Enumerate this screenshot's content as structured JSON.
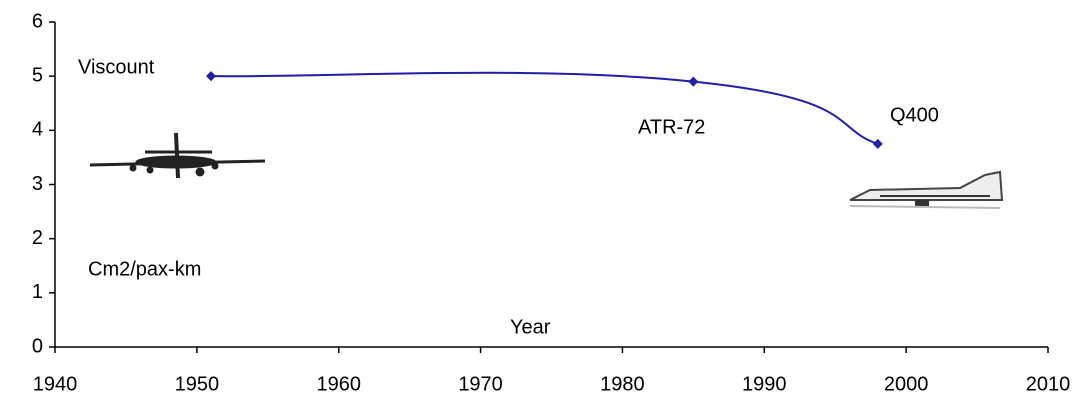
{
  "chart_data": {
    "type": "line",
    "x": [
      1951,
      1985,
      1998
    ],
    "series": [
      {
        "color": "#1f1fa8",
        "values": [
          5.0,
          4.9,
          3.75
        ]
      }
    ],
    "xlim": [
      1940,
      2010
    ],
    "xticks": [
      1940,
      1950,
      1960,
      1970,
      1980,
      1990,
      2000,
      2010
    ],
    "ylim": [
      0,
      6
    ],
    "yticks": [
      0,
      1,
      2,
      3,
      4,
      5,
      6
    ],
    "x_label": "Year",
    "y_label": "Cm2/pax-km",
    "annotations": [
      "Viscount",
      "ATR-72",
      "Q400"
    ],
    "grid": false
  }
}
